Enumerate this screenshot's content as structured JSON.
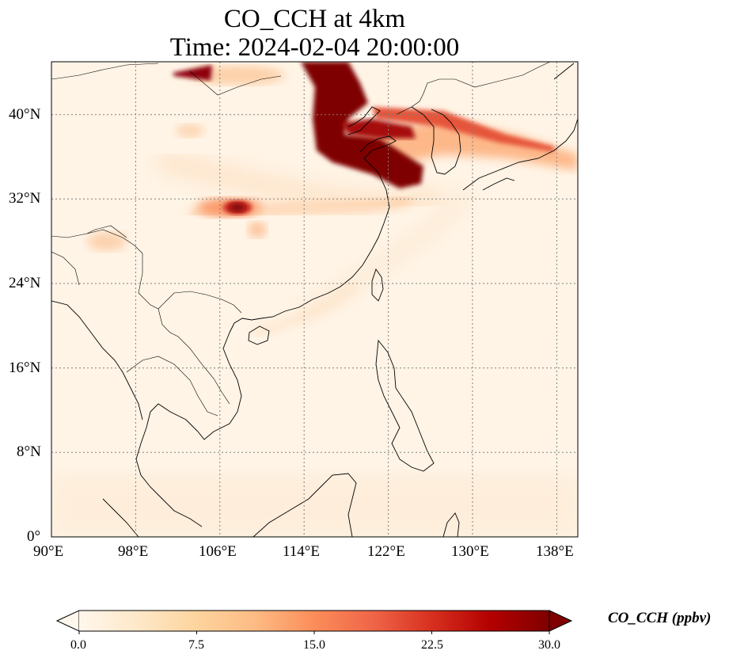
{
  "title": "CO_CCH at 4km",
  "subtitle": "Time: 2024-02-04 20:00:00",
  "map": {
    "extent": {
      "lon": [
        90,
        140
      ],
      "lat": [
        0,
        45
      ]
    },
    "lon_ticks": [
      "90°E",
      "98°E",
      "106°E",
      "114°E",
      "122°E",
      "130°E",
      "138°E"
    ],
    "lat_ticks": [
      "0°",
      "8°N",
      "16°N",
      "24°N",
      "32°N",
      "40°N"
    ],
    "gridlines": "dotted",
    "field": "CO_CCH",
    "height": "4km"
  },
  "colorbar": {
    "label": "CO_CCH (ppbv)",
    "ticks": [
      "0.0",
      "7.5",
      "15.0",
      "22.5",
      "30.0"
    ],
    "range": [
      0,
      30
    ],
    "extend": "both",
    "colormap": "OrRd",
    "colors": [
      "#fff7ec",
      "#fee8c8",
      "#fdd49e",
      "#fdbb84",
      "#fc8d59",
      "#ef6548",
      "#d7301f",
      "#b30000",
      "#7f0000"
    ]
  },
  "colors": {
    "coastline": "#000000",
    "grid": "#808080",
    "max_plume": "#7f0000"
  }
}
